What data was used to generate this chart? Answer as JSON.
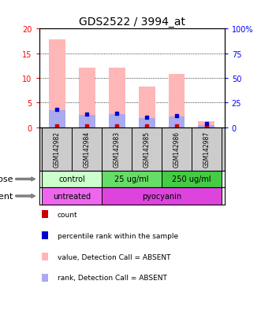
{
  "title": "GDS2522 / 3994_at",
  "samples": [
    "GSM142982",
    "GSM142984",
    "GSM142983",
    "GSM142985",
    "GSM142986",
    "GSM142987"
  ],
  "pink_bar_heights": [
    17.8,
    12.0,
    12.0,
    8.2,
    10.8,
    1.2
  ],
  "blue_bar_heights": [
    3.5,
    2.5,
    2.7,
    1.8,
    2.2,
    0.5
  ],
  "pink_bar_color": "#ffb6b6",
  "blue_bar_color": "#aaaaee",
  "ylim_left": [
    0,
    20
  ],
  "ylim_right": [
    0,
    100
  ],
  "yticks_left": [
    0,
    5,
    10,
    15,
    20
  ],
  "yticks_right": [
    0,
    25,
    50,
    75,
    100
  ],
  "ytick_labels_right": [
    "0",
    "25",
    "50",
    "75",
    "100%"
  ],
  "dose_labels": [
    {
      "text": "control",
      "start": 0,
      "end": 2,
      "color": "#ccffcc"
    },
    {
      "text": "25 ug/ml",
      "start": 2,
      "end": 4,
      "color": "#66dd66"
    },
    {
      "text": "250 ug/ml",
      "start": 4,
      "end": 6,
      "color": "#44cc44"
    }
  ],
  "agent_labels": [
    {
      "text": "untreated",
      "start": 0,
      "end": 2,
      "color": "#ee66ee"
    },
    {
      "text": "pyocyanin",
      "start": 2,
      "end": 6,
      "color": "#dd44dd"
    }
  ],
  "dose_row_label": "dose",
  "agent_row_label": "agent",
  "legend_items": [
    {
      "color": "#cc0000",
      "label": "count"
    },
    {
      "color": "#0000cc",
      "label": "percentile rank within the sample"
    },
    {
      "color": "#ffb6b6",
      "label": "value, Detection Call = ABSENT"
    },
    {
      "color": "#aaaaee",
      "label": "rank, Detection Call = ABSENT"
    }
  ],
  "bar_width": 0.55,
  "sample_bg_color": "#cccccc",
  "title_fontsize": 10
}
